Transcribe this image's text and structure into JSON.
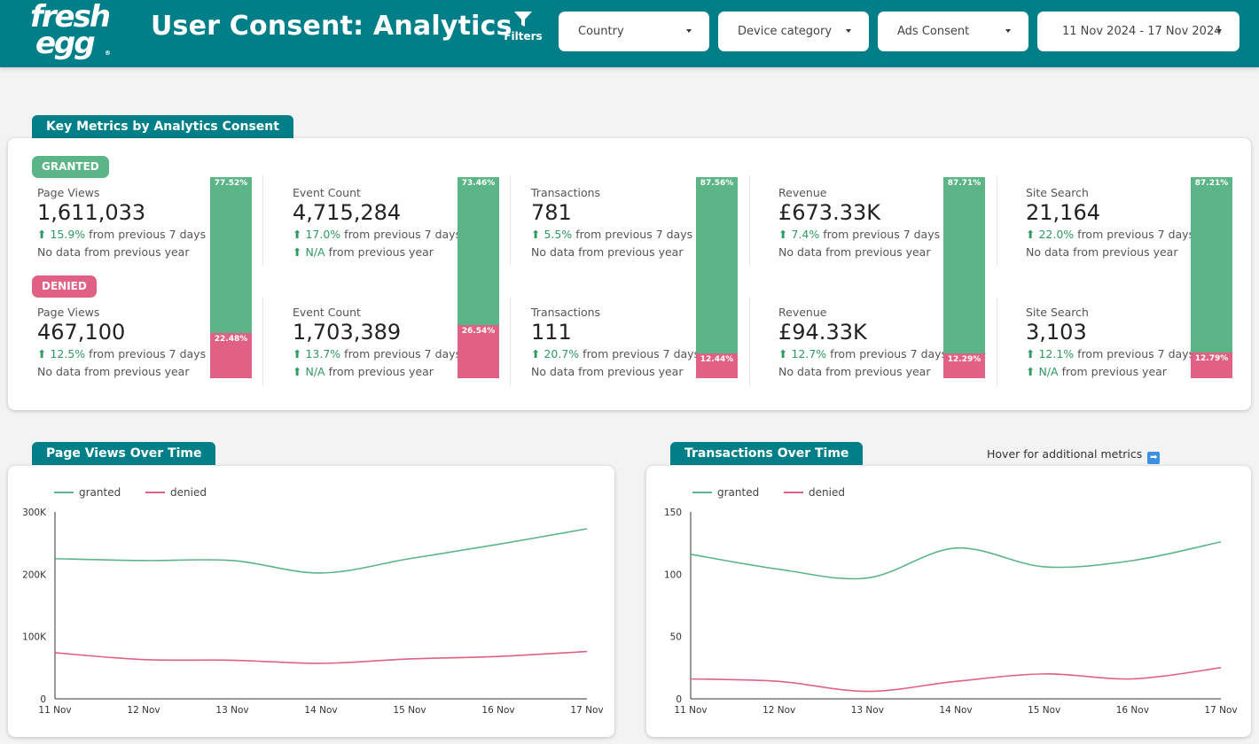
{
  "header": {
    "logo_line1": "fresh",
    "logo_line2": "egg",
    "logo_reg": "®",
    "title": "User Consent: Analytics",
    "filters_label": "Filters",
    "dropdowns": [
      {
        "label": "Country"
      },
      {
        "label": "Device category"
      },
      {
        "label": "Ads Consent"
      },
      {
        "label": "11 Nov 2024 - 17 Nov 2024"
      }
    ]
  },
  "key_metrics": {
    "tab_label": "Key Metrics by Analytics Consent",
    "granted_label": "GRANTED",
    "denied_label": "DENIED",
    "columns": [
      {
        "name": "Page Views",
        "granted": {
          "value": "1,611,033",
          "change": "15.9%",
          "change_text": "from previous 7 days",
          "year_prefix": "",
          "year_text": "No data from previous year"
        },
        "denied": {
          "value": "467,100",
          "change": "12.5%",
          "change_text": "from previous 7 days",
          "year_prefix": "",
          "year_text": "No data from previous year"
        },
        "granted_share": "77.52%",
        "denied_share": "22.48%",
        "granted_share_value": 77.52
      },
      {
        "name": "Event Count",
        "granted": {
          "value": "4,715,284",
          "change": "17.0%",
          "change_text": "from previous 7 days",
          "year_prefix": "N/A",
          "year_text": "from previous year"
        },
        "denied": {
          "value": "1,703,389",
          "change": "13.7%",
          "change_text": "from previous 7 days",
          "year_prefix": "N/A",
          "year_text": "from previous year"
        },
        "granted_share": "73.46%",
        "denied_share": "26.54%",
        "granted_share_value": 73.46
      },
      {
        "name": "Transactions",
        "granted": {
          "value": "781",
          "change": "5.5%",
          "change_text": "from previous 7 days",
          "year_prefix": "",
          "year_text": "No data from previous year"
        },
        "denied": {
          "value": "111",
          "change": "20.7%",
          "change_text": "from previous 7 days",
          "year_prefix": "",
          "year_text": "No data from previous year"
        },
        "granted_share": "87.56%",
        "denied_share": "12.44%",
        "granted_share_value": 87.56
      },
      {
        "name": "Revenue",
        "granted": {
          "value": "£673.33K",
          "change": "7.4%",
          "change_text": "from previous 7 days",
          "year_prefix": "",
          "year_text": "No data from previous year"
        },
        "denied": {
          "value": "£94.33K",
          "change": "12.7%",
          "change_text": "from previous 7 days",
          "year_prefix": "",
          "year_text": "No data from previous year"
        },
        "granted_share": "87.71%",
        "denied_share": "12.29%",
        "granted_share_value": 87.71
      },
      {
        "name": "Site Search",
        "granted": {
          "value": "21,164",
          "change": "22.0%",
          "change_text": "from previous 7 days",
          "year_prefix": "",
          "year_text": "No data from previous year"
        },
        "denied": {
          "value": "3,103",
          "change": "12.1%",
          "change_text": "from previous 7 days",
          "year_prefix": "N/A",
          "year_text": "from previous year"
        },
        "granted_share": "87.21%",
        "denied_share": "12.79%",
        "granted_share_value": 87.21
      }
    ]
  },
  "hover_note": "Hover for additional metrics",
  "colors": {
    "granted": "#5bb587",
    "denied": "#e06183",
    "brand": "#007f89"
  },
  "chart_data": [
    {
      "type": "line",
      "title": "Page Views Over Time",
      "x": [
        "11 Nov",
        "12 Nov",
        "13 Nov",
        "14 Nov",
        "15 Nov",
        "16 Nov",
        "17 Nov"
      ],
      "series": [
        {
          "name": "granted",
          "values": [
            225000,
            222000,
            222000,
            202000,
            225000,
            248000,
            273000
          ]
        },
        {
          "name": "denied",
          "values": [
            74000,
            63000,
            62000,
            57000,
            64000,
            68000,
            76000
          ]
        }
      ],
      "yticks": [
        "0",
        "100K",
        "200K",
        "300K"
      ],
      "ylim": [
        0,
        300000
      ],
      "legend": "top-left"
    },
    {
      "type": "line",
      "title": "Transactions Over Time",
      "x": [
        "11 Nov",
        "12 Nov",
        "13 Nov",
        "14 Nov",
        "15 Nov",
        "16 Nov",
        "17 Nov"
      ],
      "series": [
        {
          "name": "granted",
          "values": [
            116,
            104,
            97,
            121,
            106,
            111,
            126
          ]
        },
        {
          "name": "denied",
          "values": [
            16,
            14,
            6,
            14,
            20,
            16,
            25
          ]
        }
      ],
      "yticks": [
        "0",
        "50",
        "100",
        "150"
      ],
      "ylim": [
        0,
        150
      ],
      "legend": "top-left"
    }
  ]
}
